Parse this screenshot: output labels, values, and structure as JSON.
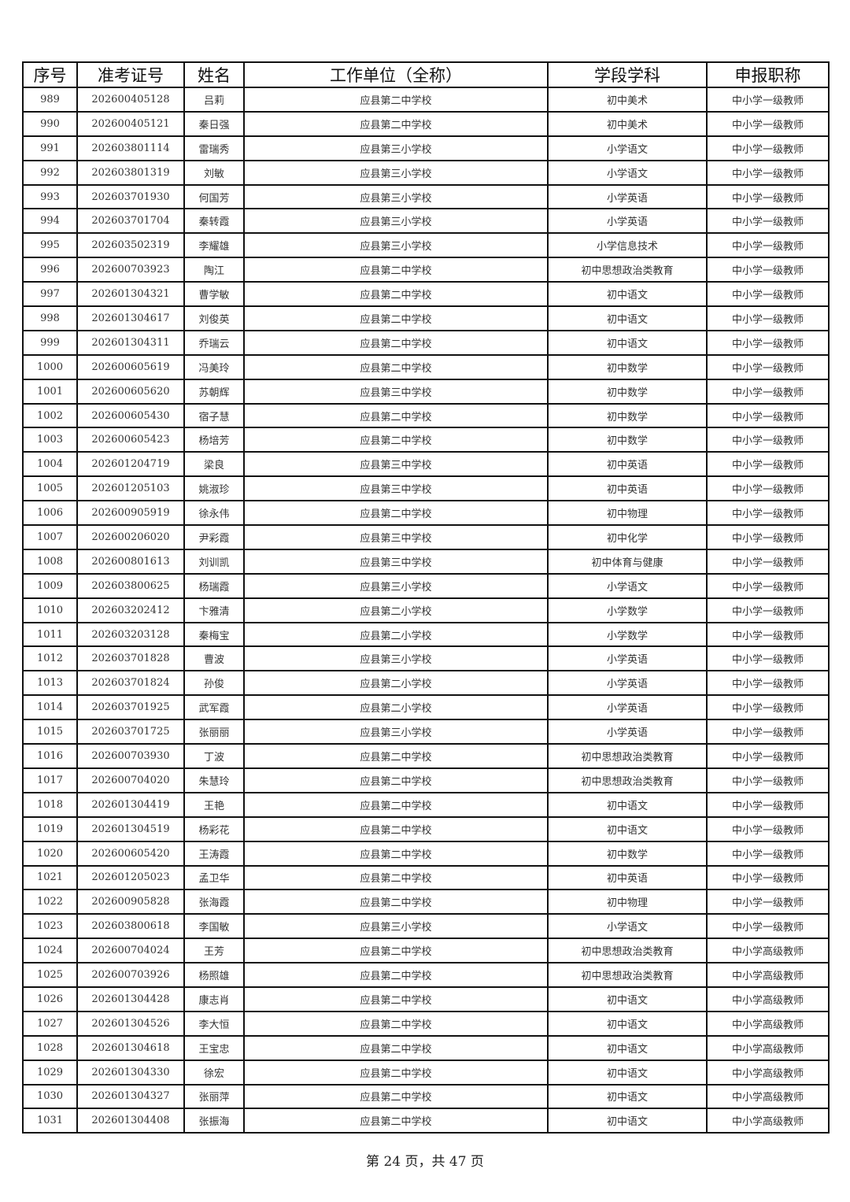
{
  "table": {
    "headers": [
      "序号",
      "准考证号",
      "姓名",
      "工作单位（全称）",
      "学段学科",
      "申报职称"
    ],
    "rows": [
      [
        "989",
        "202600405128",
        "吕莉",
        "应县第二中学校",
        "初中美术",
        "中小学一级教师"
      ],
      [
        "990",
        "202600405121",
        "秦日强",
        "应县第二中学校",
        "初中美术",
        "中小学一级教师"
      ],
      [
        "991",
        "202603801114",
        "雷瑞秀",
        "应县第三小学校",
        "小学语文",
        "中小学一级教师"
      ],
      [
        "992",
        "202603801319",
        "刘敏",
        "应县第三小学校",
        "小学语文",
        "中小学一级教师"
      ],
      [
        "993",
        "202603701930",
        "何国芳",
        "应县第三小学校",
        "小学英语",
        "中小学一级教师"
      ],
      [
        "994",
        "202603701704",
        "秦转霞",
        "应县第三小学校",
        "小学英语",
        "中小学一级教师"
      ],
      [
        "995",
        "202603502319",
        "李耀雄",
        "应县第三小学校",
        "小学信息技术",
        "中小学一级教师"
      ],
      [
        "996",
        "202600703923",
        "陶江",
        "应县第二中学校",
        "初中思想政治类教育",
        "中小学一级教师"
      ],
      [
        "997",
        "202601304321",
        "曹学敏",
        "应县第二中学校",
        "初中语文",
        "中小学一级教师"
      ],
      [
        "998",
        "202601304617",
        "刘俊英",
        "应县第二中学校",
        "初中语文",
        "中小学一级教师"
      ],
      [
        "999",
        "202601304311",
        "乔瑞云",
        "应县第二中学校",
        "初中语文",
        "中小学一级教师"
      ],
      [
        "1000",
        "202600605619",
        "冯美玲",
        "应县第二中学校",
        "初中数学",
        "中小学一级教师"
      ],
      [
        "1001",
        "202600605620",
        "苏朝辉",
        "应县第三中学校",
        "初中数学",
        "中小学一级教师"
      ],
      [
        "1002",
        "202600605430",
        "宿子慧",
        "应县第二中学校",
        "初中数学",
        "中小学一级教师"
      ],
      [
        "1003",
        "202600605423",
        "杨培芳",
        "应县第二中学校",
        "初中数学",
        "中小学一级教师"
      ],
      [
        "1004",
        "202601204719",
        "梁良",
        "应县第三中学校",
        "初中英语",
        "中小学一级教师"
      ],
      [
        "1005",
        "202601205103",
        "姚淑珍",
        "应县第三中学校",
        "初中英语",
        "中小学一级教师"
      ],
      [
        "1006",
        "202600905919",
        "徐永伟",
        "应县第二中学校",
        "初中物理",
        "中小学一级教师"
      ],
      [
        "1007",
        "202600206020",
        "尹彩霞",
        "应县第三中学校",
        "初中化学",
        "中小学一级教师"
      ],
      [
        "1008",
        "202600801613",
        "刘训凯",
        "应县第三中学校",
        "初中体育与健康",
        "中小学一级教师"
      ],
      [
        "1009",
        "202603800625",
        "杨瑞霞",
        "应县第三小学校",
        "小学语文",
        "中小学一级教师"
      ],
      [
        "1010",
        "202603202412",
        "卞雅清",
        "应县第二小学校",
        "小学数学",
        "中小学一级教师"
      ],
      [
        "1011",
        "202603203128",
        "秦梅宝",
        "应县第二小学校",
        "小学数学",
        "中小学一级教师"
      ],
      [
        "1012",
        "202603701828",
        "曹波",
        "应县第三小学校",
        "小学英语",
        "中小学一级教师"
      ],
      [
        "1013",
        "202603701824",
        "孙俊",
        "应县第二小学校",
        "小学英语",
        "中小学一级教师"
      ],
      [
        "1014",
        "202603701925",
        "武军霞",
        "应县第二小学校",
        "小学英语",
        "中小学一级教师"
      ],
      [
        "1015",
        "202603701725",
        "张丽丽",
        "应县第三小学校",
        "小学英语",
        "中小学一级教师"
      ],
      [
        "1016",
        "202600703930",
        "丁波",
        "应县第二中学校",
        "初中思想政治类教育",
        "中小学一级教师"
      ],
      [
        "1017",
        "202600704020",
        "朱慧玲",
        "应县第二中学校",
        "初中思想政治类教育",
        "中小学一级教师"
      ],
      [
        "1018",
        "202601304419",
        "王艳",
        "应县第二中学校",
        "初中语文",
        "中小学一级教师"
      ],
      [
        "1019",
        "202601304519",
        "杨彩花",
        "应县第二中学校",
        "初中语文",
        "中小学一级教师"
      ],
      [
        "1020",
        "202600605420",
        "王涛霞",
        "应县第二中学校",
        "初中数学",
        "中小学一级教师"
      ],
      [
        "1021",
        "202601205023",
        "孟卫华",
        "应县第二中学校",
        "初中英语",
        "中小学一级教师"
      ],
      [
        "1022",
        "202600905828",
        "张海霞",
        "应县第二中学校",
        "初中物理",
        "中小学一级教师"
      ],
      [
        "1023",
        "202603800618",
        "李国敏",
        "应县第三小学校",
        "小学语文",
        "中小学一级教师"
      ],
      [
        "1024",
        "202600704024",
        "王芳",
        "应县第二中学校",
        "初中思想政治类教育",
        "中小学高级教师"
      ],
      [
        "1025",
        "202600703926",
        "杨照雄",
        "应县第二中学校",
        "初中思想政治类教育",
        "中小学高级教师"
      ],
      [
        "1026",
        "202601304428",
        "康志肖",
        "应县第二中学校",
        "初中语文",
        "中小学高级教师"
      ],
      [
        "1027",
        "202601304526",
        "李大恒",
        "应县第二中学校",
        "初中语文",
        "中小学高级教师"
      ],
      [
        "1028",
        "202601304618",
        "王宝忠",
        "应县第二中学校",
        "初中语文",
        "中小学高级教师"
      ],
      [
        "1029",
        "202601304330",
        "徐宏",
        "应县第二中学校",
        "初中语文",
        "中小学高级教师"
      ],
      [
        "1030",
        "202601304327",
        "张丽萍",
        "应县第二中学校",
        "初中语文",
        "中小学高级教师"
      ],
      [
        "1031",
        "202601304408",
        "张振海",
        "应县第二中学校",
        "初中语文",
        "中小学高级教师"
      ]
    ]
  },
  "footer": {
    "page_text": "第 24 页，共 47 页"
  }
}
